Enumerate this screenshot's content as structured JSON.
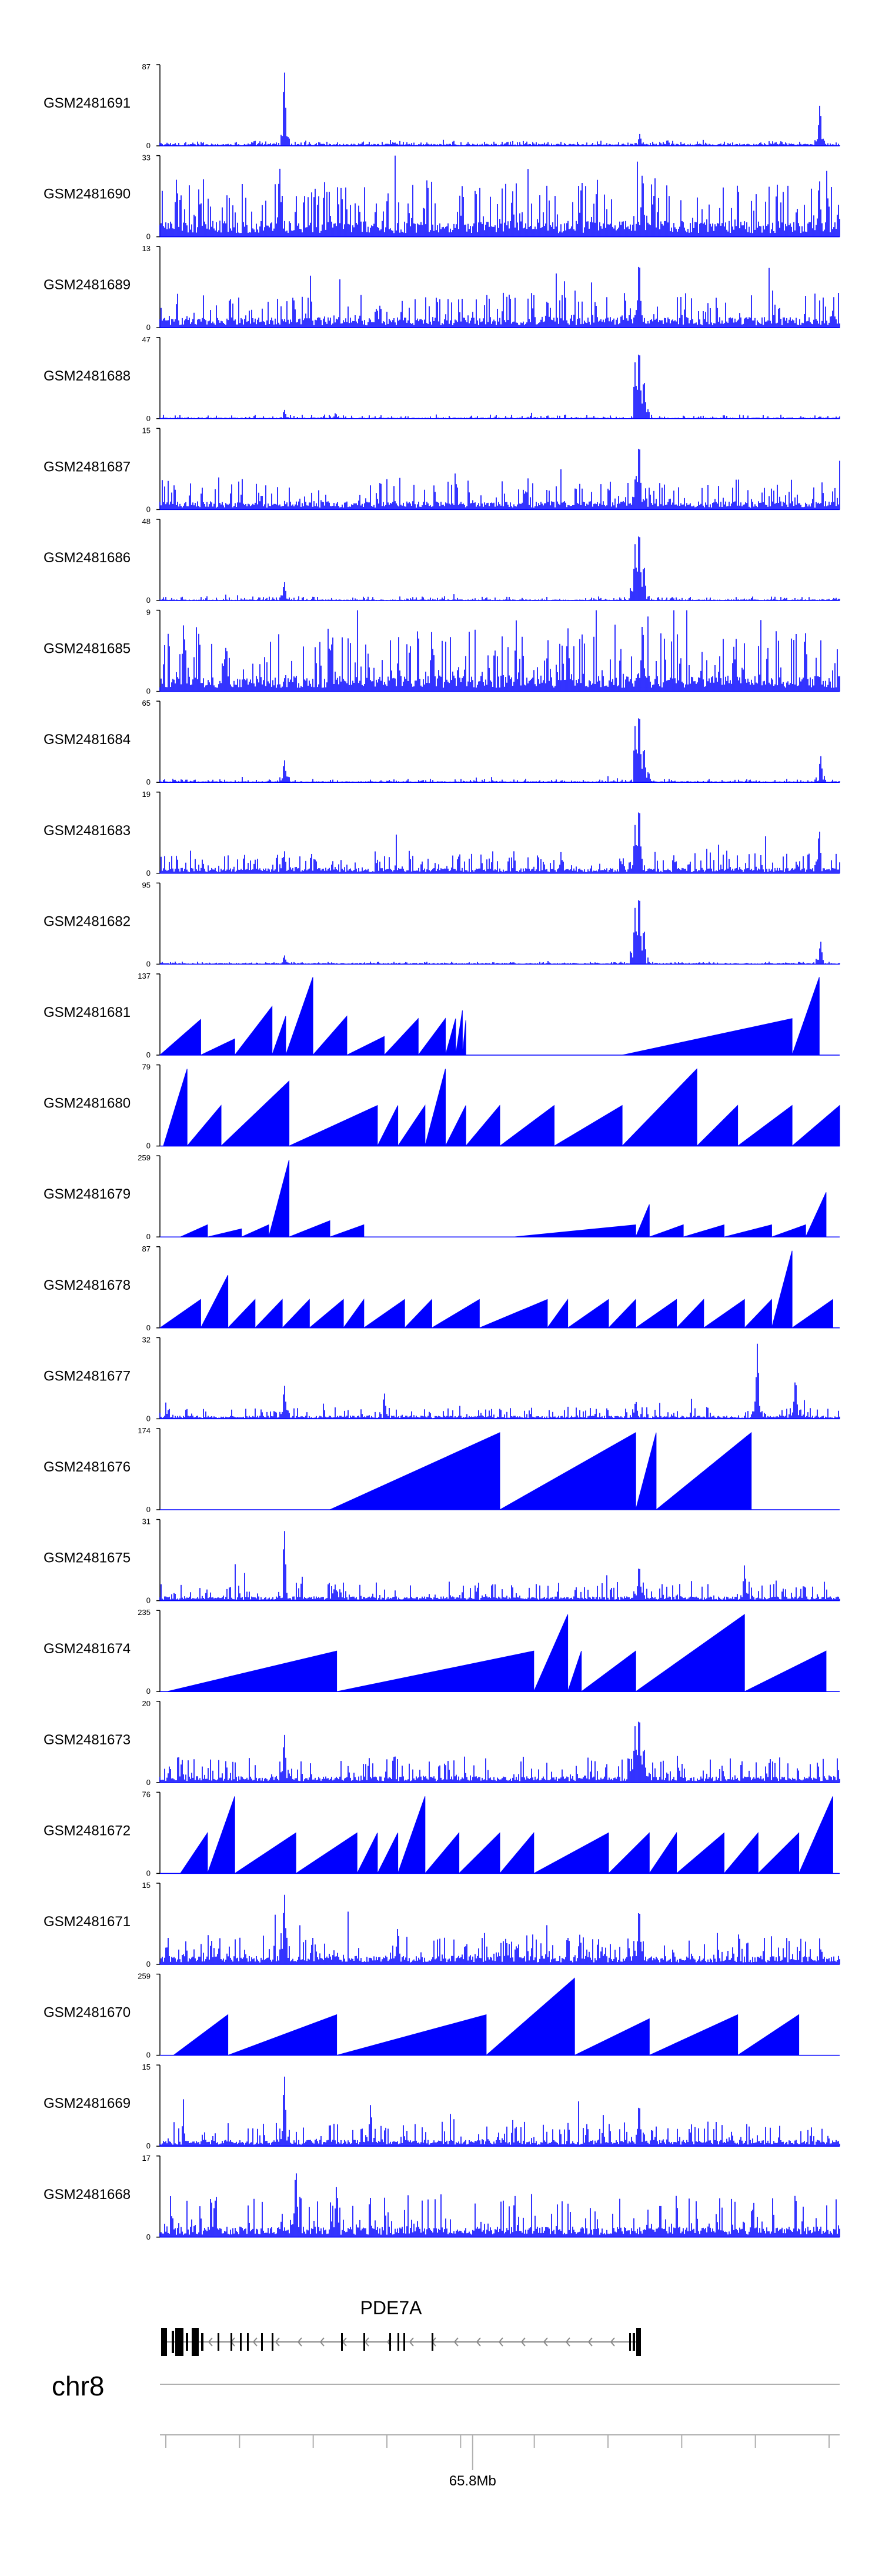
{
  "chart_data": {
    "type": "area",
    "accent_color": "#0000ff",
    "tracks": [
      {
        "label": "GSM2481691",
        "max": "87",
        "min": "0",
        "profile": {
          "kind": "dense",
          "base": 0.02,
          "noise": 0.04,
          "peaks": [
            [
              0.183,
              1.0
            ],
            [
              0.706,
              0.15
            ],
            [
              0.971,
              0.55
            ]
          ]
        }
      },
      {
        "label": "GSM2481690",
        "max": "33",
        "min": "0",
        "profile": {
          "kind": "mixed",
          "base": 0.15,
          "noise": 0.55,
          "peaks": [
            [
              0.176,
              0.95
            ],
            [
              0.71,
              0.9
            ],
            [
              0.97,
              0.8
            ]
          ]
        }
      },
      {
        "label": "GSM2481689",
        "max": "13",
        "min": "0",
        "profile": {
          "kind": "dense",
          "base": 0.1,
          "noise": 0.35,
          "peaks": [
            [
              0.705,
              0.95
            ],
            [
              0.57,
              0.4
            ]
          ]
        }
      },
      {
        "label": "GSM2481688",
        "max": "47",
        "min": "0",
        "profile": {
          "kind": "dense",
          "base": 0.01,
          "noise": 0.04,
          "peaks": [
            [
              0.705,
              1.0
            ],
            [
              0.699,
              0.7
            ],
            [
              0.712,
              0.55
            ],
            [
              0.183,
              0.12
            ]
          ]
        }
      },
      {
        "label": "GSM2481687",
        "max": "15",
        "min": "0",
        "profile": {
          "kind": "dense",
          "base": 0.08,
          "noise": 0.3,
          "peaks": [
            [
              0.705,
              0.95
            ],
            [
              0.7,
              0.5
            ]
          ]
        }
      },
      {
        "label": "GSM2481686",
        "max": "48",
        "min": "0",
        "profile": {
          "kind": "dense",
          "base": 0.01,
          "noise": 0.04,
          "peaks": [
            [
              0.705,
              1.0
            ],
            [
              0.699,
              0.7
            ],
            [
              0.712,
              0.5
            ],
            [
              0.183,
              0.25
            ]
          ]
        }
      },
      {
        "label": "GSM2481685",
        "max": "9",
        "min": "0",
        "profile": {
          "kind": "dense",
          "base": 0.15,
          "noise": 0.6,
          "peaks": [
            [
              0.71,
              0.95
            ],
            [
              0.6,
              0.85
            ],
            [
              0.4,
              0.8
            ],
            [
              0.95,
              0.75
            ]
          ]
        }
      },
      {
        "label": "GSM2481684",
        "max": "65",
        "min": "0",
        "profile": {
          "kind": "dense",
          "base": 0.01,
          "noise": 0.03,
          "peaks": [
            [
              0.705,
              1.0
            ],
            [
              0.699,
              0.7
            ],
            [
              0.712,
              0.5
            ],
            [
              0.183,
              0.3
            ],
            [
              0.972,
              0.35
            ]
          ]
        }
      },
      {
        "label": "GSM2481683",
        "max": "19",
        "min": "0",
        "profile": {
          "kind": "dense",
          "base": 0.05,
          "noise": 0.22,
          "peaks": [
            [
              0.705,
              0.95
            ],
            [
              0.699,
              0.6
            ],
            [
              0.97,
              0.6
            ],
            [
              0.183,
              0.3
            ]
          ]
        }
      },
      {
        "label": "GSM2481682",
        "max": "95",
        "min": "0",
        "profile": {
          "kind": "dense",
          "base": 0.01,
          "noise": 0.02,
          "peaks": [
            [
              0.705,
              1.0
            ],
            [
              0.699,
              0.7
            ],
            [
              0.712,
              0.5
            ],
            [
              0.972,
              0.3
            ],
            [
              0.183,
              0.12
            ]
          ]
        }
      },
      {
        "label": "GSM2481681",
        "max": "137",
        "min": "0",
        "profile": {
          "kind": "triangles",
          "tri": [
            [
              0.0,
              0.06,
              0.44
            ],
            [
              0.06,
              0.11,
              0.2
            ],
            [
              0.11,
              0.165,
              0.6
            ],
            [
              0.165,
              0.185,
              0.48
            ],
            [
              0.185,
              0.225,
              0.96
            ],
            [
              0.225,
              0.275,
              0.48
            ],
            [
              0.275,
              0.33,
              0.23
            ],
            [
              0.33,
              0.38,
              0.45
            ],
            [
              0.38,
              0.42,
              0.45
            ],
            [
              0.42,
              0.435,
              0.45
            ],
            [
              0.435,
              0.445,
              0.55
            ],
            [
              0.445,
              0.45,
              0.43
            ],
            [
              0.45,
              0.68,
              0.0
            ],
            [
              0.68,
              0.93,
              0.45
            ],
            [
              0.93,
              0.97,
              0.96
            ],
            [
              0.97,
              1.0,
              0.0
            ]
          ]
        }
      },
      {
        "label": "GSM2481680",
        "max": "79",
        "min": "0",
        "profile": {
          "kind": "triangles",
          "tri": [
            [
              0.005,
              0.04,
              0.95
            ],
            [
              0.04,
              0.09,
              0.5
            ],
            [
              0.09,
              0.19,
              0.8
            ],
            [
              0.19,
              0.32,
              0.5
            ],
            [
              0.32,
              0.35,
              0.5
            ],
            [
              0.35,
              0.39,
              0.5
            ],
            [
              0.39,
              0.42,
              0.95
            ],
            [
              0.42,
              0.45,
              0.5
            ],
            [
              0.45,
              0.5,
              0.5
            ],
            [
              0.5,
              0.58,
              0.5
            ],
            [
              0.58,
              0.68,
              0.5
            ],
            [
              0.68,
              0.79,
              0.95
            ],
            [
              0.79,
              0.85,
              0.5
            ],
            [
              0.85,
              0.93,
              0.5
            ],
            [
              0.93,
              1.0,
              0.5
            ]
          ]
        }
      },
      {
        "label": "GSM2481679",
        "max": "259",
        "min": "0",
        "profile": {
          "kind": "triangles",
          "tri": [
            [
              0.03,
              0.07,
              0.15
            ],
            [
              0.07,
              0.12,
              0.1
            ],
            [
              0.12,
              0.16,
              0.15
            ],
            [
              0.16,
              0.19,
              0.95
            ],
            [
              0.19,
              0.25,
              0.2
            ],
            [
              0.25,
              0.3,
              0.15
            ],
            [
              0.3,
              0.52,
              0.0
            ],
            [
              0.52,
              0.7,
              0.15
            ],
            [
              0.7,
              0.72,
              0.4
            ],
            [
              0.72,
              0.77,
              0.15
            ],
            [
              0.77,
              0.83,
              0.15
            ],
            [
              0.83,
              0.9,
              0.15
            ],
            [
              0.9,
              0.95,
              0.15
            ],
            [
              0.95,
              0.98,
              0.55
            ]
          ]
        }
      },
      {
        "label": "GSM2481678",
        "max": "87",
        "min": "0",
        "profile": {
          "kind": "triangles",
          "tri": [
            [
              0.0,
              0.06,
              0.35
            ],
            [
              0.06,
              0.1,
              0.65
            ],
            [
              0.1,
              0.14,
              0.35
            ],
            [
              0.14,
              0.18,
              0.35
            ],
            [
              0.18,
              0.22,
              0.35
            ],
            [
              0.22,
              0.27,
              0.35
            ],
            [
              0.27,
              0.3,
              0.35
            ],
            [
              0.3,
              0.36,
              0.35
            ],
            [
              0.36,
              0.4,
              0.35
            ],
            [
              0.4,
              0.47,
              0.35
            ],
            [
              0.47,
              0.57,
              0.35
            ],
            [
              0.57,
              0.6,
              0.35
            ],
            [
              0.6,
              0.66,
              0.35
            ],
            [
              0.66,
              0.7,
              0.35
            ],
            [
              0.7,
              0.76,
              0.35
            ],
            [
              0.76,
              0.8,
              0.35
            ],
            [
              0.8,
              0.86,
              0.35
            ],
            [
              0.86,
              0.9,
              0.35
            ],
            [
              0.9,
              0.93,
              0.95
            ],
            [
              0.93,
              0.99,
              0.35
            ]
          ]
        }
      },
      {
        "label": "GSM2481677",
        "max": "32",
        "min": "0",
        "profile": {
          "kind": "dense",
          "base": 0.03,
          "noise": 0.12,
          "peaks": [
            [
              0.879,
              0.95
            ],
            [
              0.935,
              0.55
            ],
            [
              0.183,
              0.45
            ],
            [
              0.33,
              0.35
            ],
            [
              0.7,
              0.25
            ]
          ]
        }
      },
      {
        "label": "GSM2481676",
        "max": "174",
        "min": "0",
        "profile": {
          "kind": "triangles",
          "tri": [
            [
              0.25,
              0.5,
              0.95
            ],
            [
              0.5,
              0.7,
              0.95
            ],
            [
              0.7,
              0.73,
              0.95
            ],
            [
              0.73,
              0.87,
              0.95
            ]
          ]
        }
      },
      {
        "label": "GSM2481675",
        "max": "31",
        "min": "0",
        "profile": {
          "kind": "dense",
          "base": 0.04,
          "noise": 0.2,
          "peaks": [
            [
              0.183,
              0.95
            ],
            [
              0.705,
              0.5
            ],
            [
              0.86,
              0.45
            ]
          ]
        }
      },
      {
        "label": "GSM2481674",
        "max": "235",
        "min": "0",
        "profile": {
          "kind": "triangles",
          "tri": [
            [
              0.01,
              0.26,
              0.5
            ],
            [
              0.26,
              0.55,
              0.5
            ],
            [
              0.55,
              0.6,
              0.95
            ],
            [
              0.6,
              0.62,
              0.5
            ],
            [
              0.62,
              0.7,
              0.5
            ],
            [
              0.7,
              0.86,
              0.95
            ],
            [
              0.86,
              0.98,
              0.5
            ]
          ]
        }
      },
      {
        "label": "GSM2481673",
        "max": "20",
        "min": "0",
        "profile": {
          "kind": "dense",
          "base": 0.06,
          "noise": 0.25,
          "peaks": [
            [
              0.705,
              0.95
            ],
            [
              0.699,
              0.7
            ],
            [
              0.712,
              0.5
            ],
            [
              0.183,
              0.65
            ]
          ]
        }
      },
      {
        "label": "GSM2481672",
        "max": "76",
        "min": "0",
        "profile": {
          "kind": "triangles",
          "tri": [
            [
              0.03,
              0.07,
              0.5
            ],
            [
              0.07,
              0.11,
              0.95
            ],
            [
              0.11,
              0.2,
              0.5
            ],
            [
              0.2,
              0.29,
              0.5
            ],
            [
              0.29,
              0.32,
              0.5
            ],
            [
              0.32,
              0.35,
              0.5
            ],
            [
              0.35,
              0.39,
              0.95
            ],
            [
              0.39,
              0.44,
              0.5
            ],
            [
              0.44,
              0.5,
              0.5
            ],
            [
              0.5,
              0.55,
              0.5
            ],
            [
              0.55,
              0.66,
              0.5
            ],
            [
              0.66,
              0.72,
              0.5
            ],
            [
              0.72,
              0.76,
              0.5
            ],
            [
              0.76,
              0.83,
              0.5
            ],
            [
              0.83,
              0.88,
              0.5
            ],
            [
              0.88,
              0.94,
              0.5
            ],
            [
              0.94,
              0.99,
              0.95
            ]
          ]
        }
      },
      {
        "label": "GSM2481671",
        "max": "15",
        "min": "0",
        "profile": {
          "kind": "dense",
          "base": 0.08,
          "noise": 0.3,
          "peaks": [
            [
              0.183,
              0.95
            ],
            [
              0.705,
              0.8
            ],
            [
              0.35,
              0.5
            ]
          ]
        }
      },
      {
        "label": "GSM2481670",
        "max": "259",
        "min": "0",
        "profile": {
          "kind": "triangles",
          "tri": [
            [
              0.02,
              0.1,
              0.5
            ],
            [
              0.1,
              0.26,
              0.5
            ],
            [
              0.26,
              0.48,
              0.5
            ],
            [
              0.48,
              0.61,
              0.95
            ],
            [
              0.61,
              0.72,
              0.45
            ],
            [
              0.72,
              0.85,
              0.5
            ],
            [
              0.85,
              0.94,
              0.5
            ]
          ]
        }
      },
      {
        "label": "GSM2481669",
        "max": "15",
        "min": "0",
        "profile": {
          "kind": "dense",
          "base": 0.06,
          "noise": 0.25,
          "peaks": [
            [
              0.183,
              0.95
            ],
            [
              0.705,
              0.6
            ],
            [
              0.31,
              0.55
            ]
          ]
        }
      },
      {
        "label": "GSM2481668",
        "max": "17",
        "min": "0",
        "profile": {
          "kind": "dense",
          "base": 0.1,
          "noise": 0.45,
          "peaks": [
            [
              0.2,
              0.95
            ],
            [
              0.26,
              0.7
            ]
          ]
        }
      }
    ],
    "gene": {
      "name": "PDE7A"
    },
    "chromosome": "chr8",
    "axis": {
      "tick_label": "65.8Mb",
      "tick_position": 0.46
    }
  }
}
